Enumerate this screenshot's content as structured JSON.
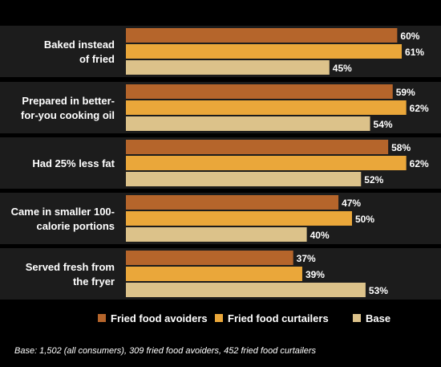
{
  "chart_data": {
    "type": "bar",
    "orientation": "horizontal",
    "categories": [
      [
        "Baked instead",
        "of fried"
      ],
      [
        "Prepared in better-",
        "for-you cooking oil"
      ],
      [
        "Had 25% less fat"
      ],
      [
        "Came in smaller 100-",
        "calorie portions"
      ],
      [
        "Served fresh from",
        "the fryer"
      ]
    ],
    "series": [
      {
        "name": "Fried food avoiders",
        "color": "#b5652b",
        "values": [
          60,
          59,
          58,
          47,
          37
        ],
        "labels": [
          "60%",
          "59%",
          "58%",
          "47%",
          "37%"
        ]
      },
      {
        "name": "Fried food curtailers",
        "color": "#eaa73a",
        "values": [
          61,
          62,
          62,
          50,
          39
        ],
        "labels": [
          "61%",
          "62%",
          "62%",
          "50%",
          "39%"
        ]
      },
      {
        "name": "Base",
        "color": "#dcc28a",
        "values": [
          45,
          54,
          52,
          40,
          53
        ],
        "labels": [
          "45%",
          "54%",
          "52%",
          "40%",
          "53%"
        ]
      }
    ],
    "legend_position": "bottom",
    "grid": false,
    "footnote": "Base: 1,502 (all consumers), 309 fried food avoiders, 452 fried food curtailers"
  },
  "colors": {
    "background": "#000000",
    "panel": "#1c1c1c",
    "text": "#ffffff"
  }
}
